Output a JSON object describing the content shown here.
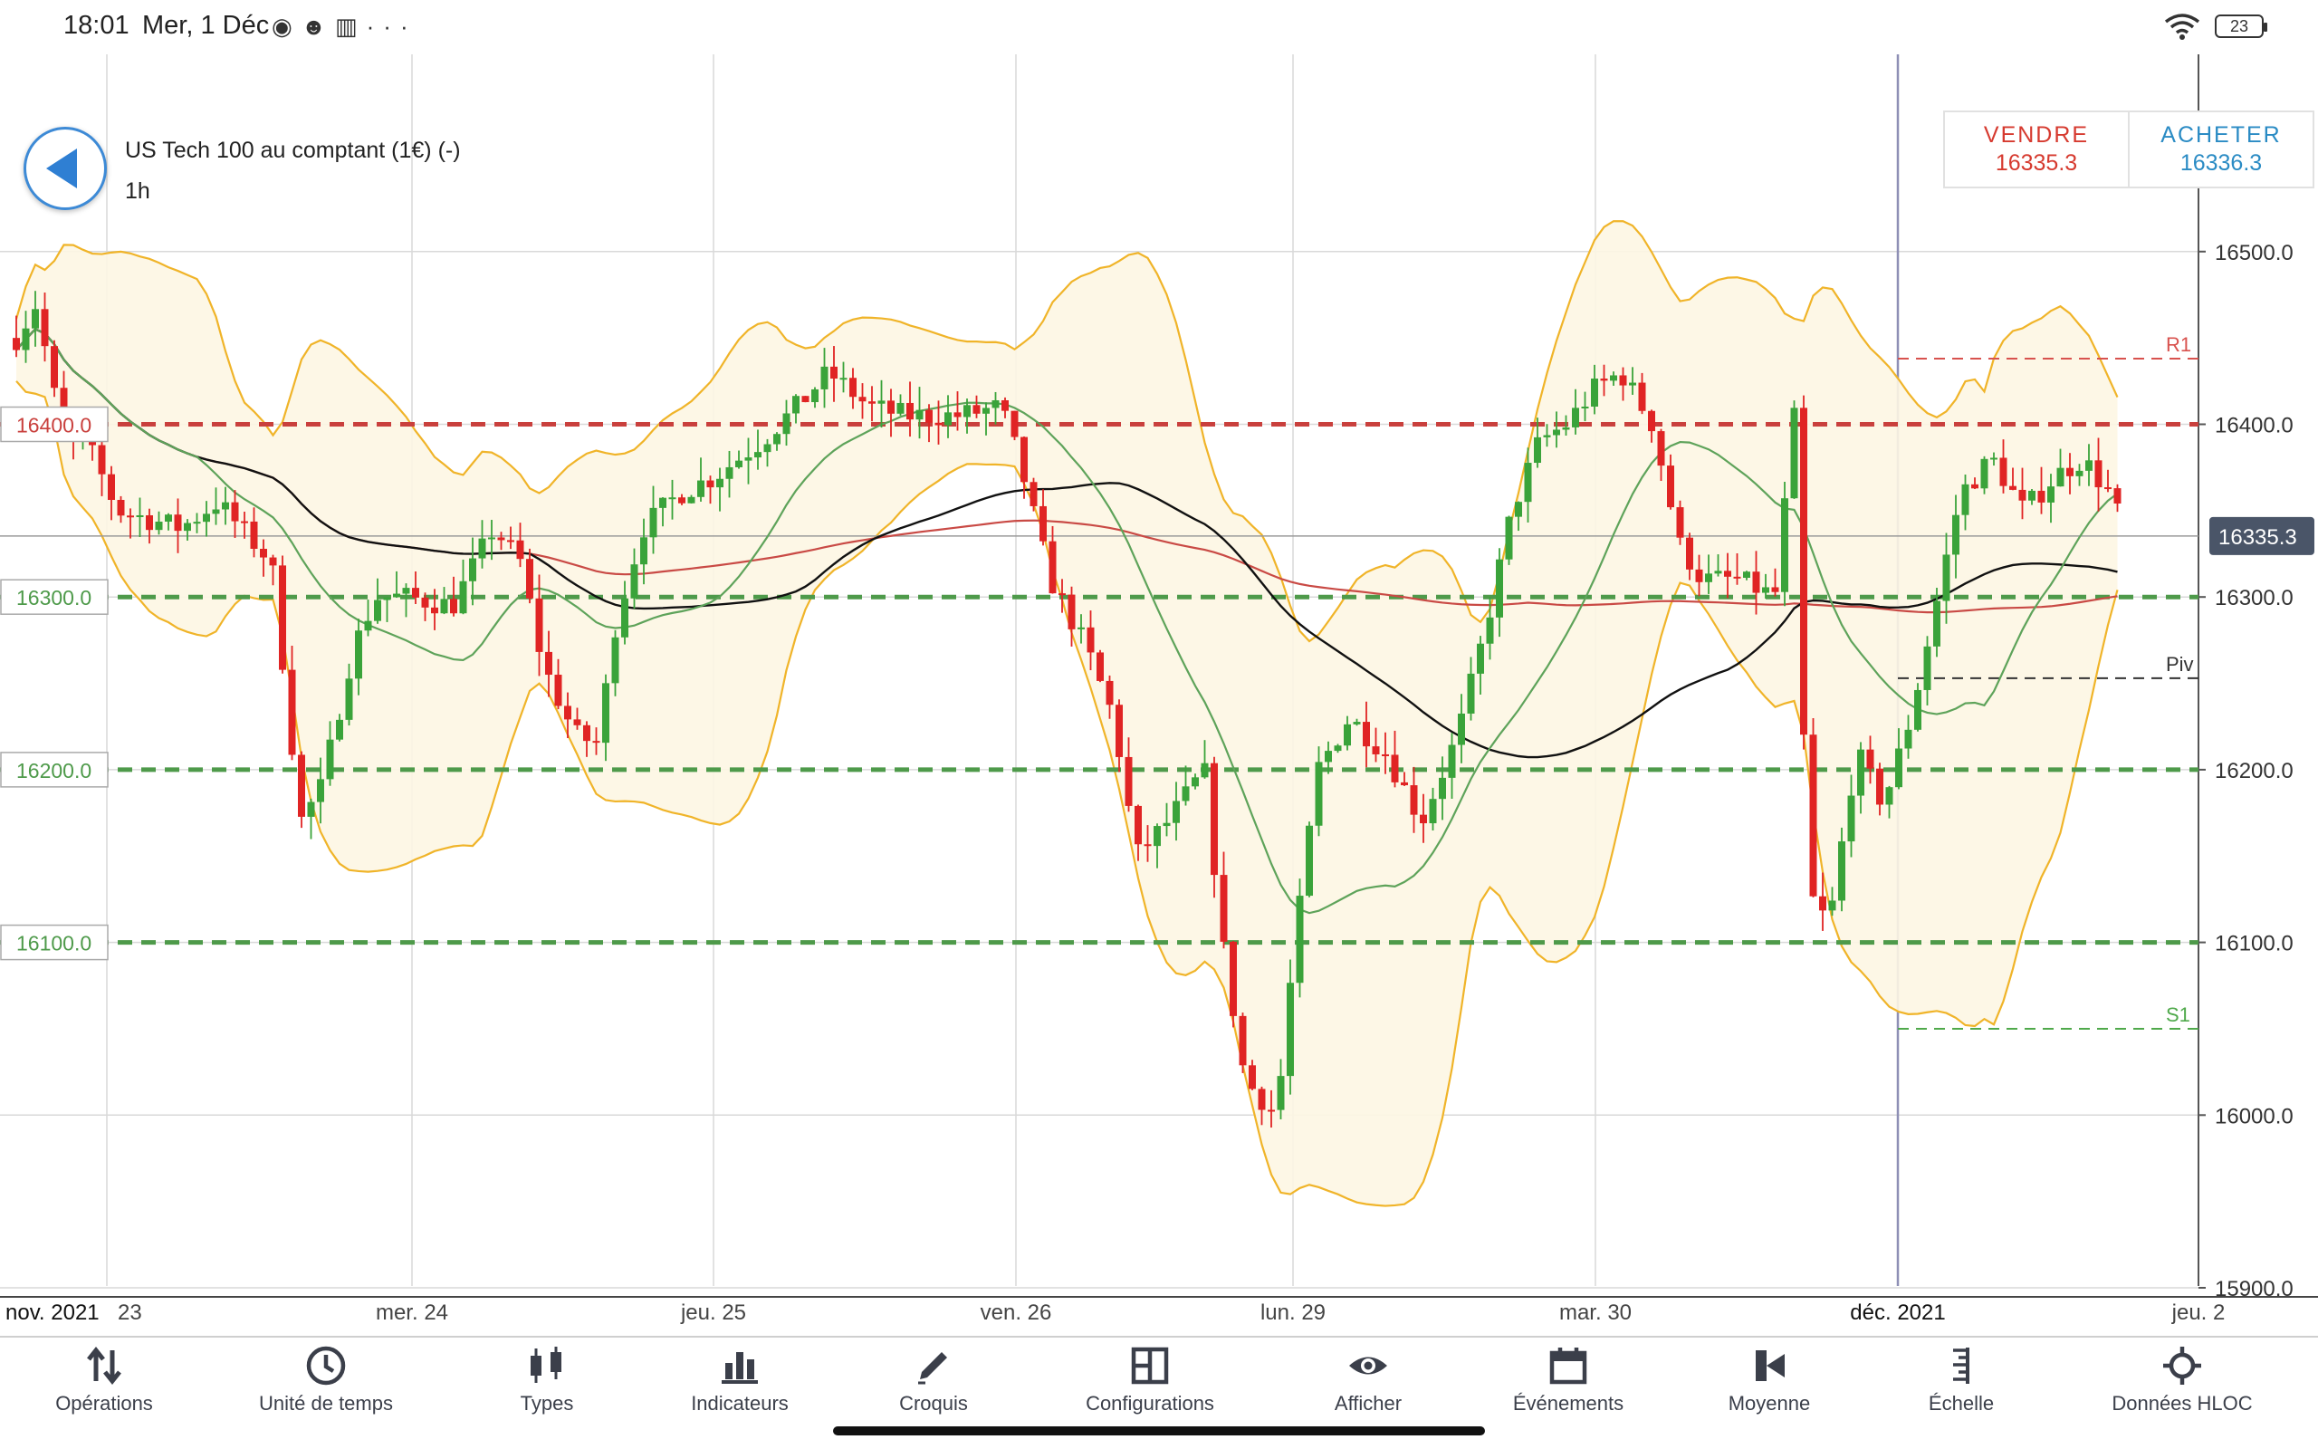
{
  "status_bar": {
    "time": "18:01",
    "date": "Mer, 1 Déc",
    "icons": [
      "location-icon",
      "profile-icon",
      "reader-icon",
      "more-icon"
    ],
    "battery": "23"
  },
  "instrument": {
    "title": "US Tech 100 au comptant (1€) (-)",
    "timeframe": "1h"
  },
  "trade": {
    "sell_label": "VENDRE",
    "sell_price": "16335.3",
    "buy_label": "ACHETER",
    "buy_price": "16336.3"
  },
  "chart_data": {
    "type": "candlestick",
    "y_range": [
      15900,
      16500
    ],
    "y_ticks": [
      "16500.0",
      "16400.0",
      "16300.0",
      "16200.0",
      "16100.0",
      "16000.0",
      "15900.0"
    ],
    "x_labels": [
      {
        "label": "nov. 2021",
        "bold": true
      },
      {
        "label": "23"
      },
      {
        "label": "mer. 24"
      },
      {
        "label": "jeu. 25"
      },
      {
        "label": "ven. 26"
      },
      {
        "label": "lun. 29"
      },
      {
        "label": "mar. 30"
      },
      {
        "label": "déc. 2021",
        "bold": true
      },
      {
        "label": "jeu. 2"
      }
    ],
    "current_price": {
      "value": 16335.3,
      "label": "16335.3"
    },
    "levels": [
      {
        "value": 16400,
        "label": "16400.0",
        "color": "#c9403d"
      },
      {
        "value": 16300,
        "label": "16300.0",
        "color": "#4e9a4a"
      },
      {
        "value": 16200,
        "label": "16200.0",
        "color": "#4e9a4a"
      },
      {
        "value": 16100,
        "label": "16100.0",
        "color": "#4e9a4a"
      }
    ],
    "pivots": [
      {
        "name": "R1",
        "value": 16438,
        "color": "#d8524e"
      },
      {
        "name": "Piv",
        "value": 16253,
        "color": "#333333"
      },
      {
        "name": "S1",
        "value": 16050,
        "color": "#4fa94b"
      }
    ],
    "colors": {
      "up": "#3aa33a",
      "down": "#e02424",
      "bollinger": "#f0b429",
      "sma_fast": "#5ea35a",
      "sma_slow": "#111111",
      "sma_long": "#c94a45"
    }
  },
  "toolbar": [
    {
      "label": "Opérations",
      "icon": "arrows-updown-icon"
    },
    {
      "label": "Unité de temps",
      "icon": "clock-icon"
    },
    {
      "label": "Types",
      "icon": "candles-icon"
    },
    {
      "label": "Indicateurs",
      "icon": "bar-chart-icon"
    },
    {
      "label": "Croquis",
      "icon": "pencil-icon"
    },
    {
      "label": "Configurations",
      "icon": "layout-icon"
    },
    {
      "label": "Afficher",
      "icon": "eye-icon"
    },
    {
      "label": "Événements",
      "icon": "calendar-icon"
    },
    {
      "label": "Moyenne",
      "icon": "average-icon"
    },
    {
      "label": "Échelle",
      "icon": "scale-icon"
    },
    {
      "label": "Données HLOC",
      "icon": "crosshair-icon"
    }
  ]
}
